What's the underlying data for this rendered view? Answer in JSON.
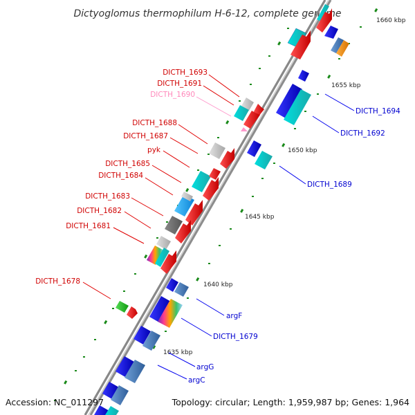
{
  "title": "Dictyoglomus thermophilum H-6-12, complete genome",
  "footer": {
    "accession": "Accession: NC_011297",
    "topology": "Topology: circular; Length: 1,959,987 bp; Genes: 1,964"
  },
  "ticks": [
    "1660 kbp",
    "1655 kbp",
    "1650 kbp",
    "1645 kbp",
    "1640 kbp",
    "1635 kbp"
  ],
  "gene_labels_left": [
    "DICTH_1693",
    "DICTH_1691",
    "DICTH_1690",
    "DICTH_1688",
    "DICTH_1687",
    "pyk",
    "DICTH_1685",
    "DICTH_1684",
    "DICTH_1683",
    "DICTH_1682",
    "DICTH_1681",
    "DICTH_1678"
  ],
  "gene_labels_right": [
    "DICTH_1694",
    "DICTH_1692",
    "DICTH_1689",
    "argF",
    "DICTH_1679",
    "argG",
    "argC"
  ],
  "colors": {
    "forward_strand": "#ff0000",
    "reverse_strand": "#0000ee",
    "pseudo": "#ff99cc",
    "cyan": "#00cccc",
    "grey": "#c8c8c8",
    "steelblue": "#4a7fc0",
    "tick_green": "#1a8a1a"
  }
}
